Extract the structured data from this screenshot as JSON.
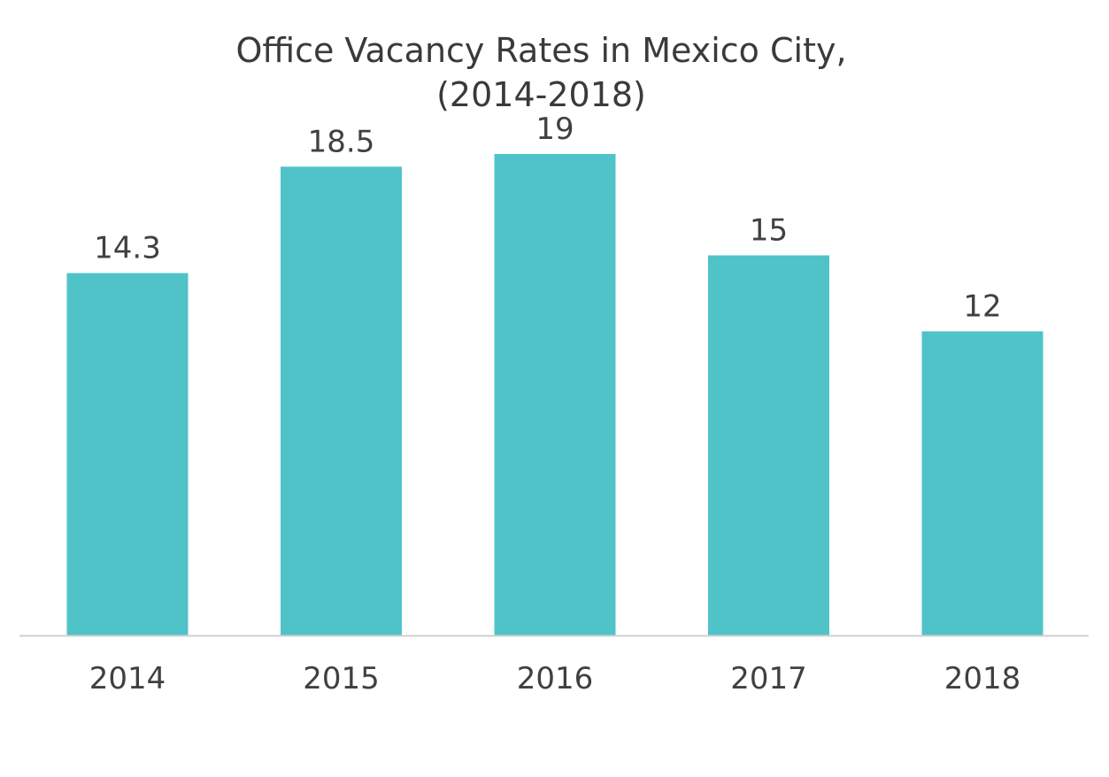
{
  "chart_data": {
    "type": "bar",
    "title": [
      "Office Vacancy Rates in Mexico City,",
      "(2014-2018)"
    ],
    "categories": [
      "2014",
      "2015",
      "2016",
      "2017",
      "2018"
    ],
    "values": [
      14.3,
      18.5,
      19,
      15,
      12
    ],
    "data_labels": [
      "14.3",
      "18.5",
      "19",
      "15",
      "12"
    ],
    "xlabel": "",
    "ylabel": "",
    "ylim": [
      0,
      19
    ],
    "grid": false,
    "legend": "none",
    "colors": {
      "bar": "#50C3C9",
      "axis": "#d0d0d0",
      "text": "#404040"
    }
  }
}
